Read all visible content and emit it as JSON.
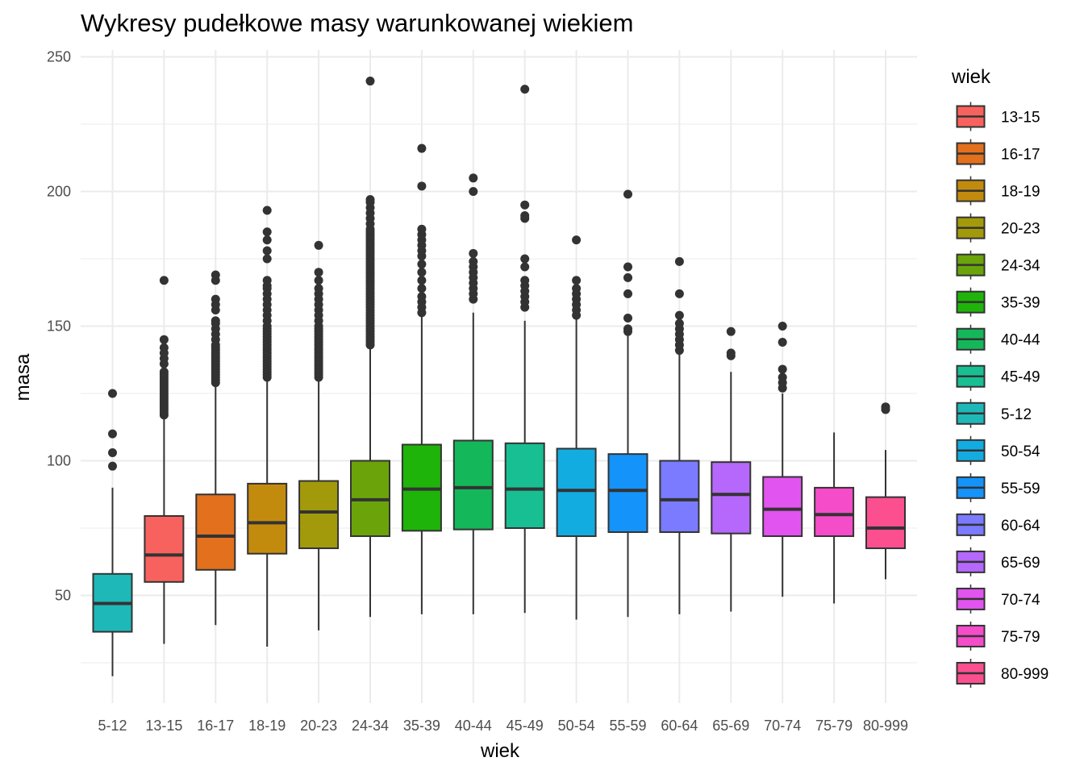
{
  "chart_data": {
    "type": "boxplot",
    "title": "Wykresy pudełkowe masy warunkowanej wiekiem",
    "xlabel": "wiek",
    "ylabel": "masa",
    "ylim": [
      10,
      252
    ],
    "yticks": [
      50,
      100,
      150,
      200,
      250
    ],
    "legend": {
      "title": "wiek",
      "position": "right"
    },
    "categories": [
      "5-12",
      "13-15",
      "16-17",
      "18-19",
      "20-23",
      "24-34",
      "35-39",
      "40-44",
      "45-49",
      "50-54",
      "55-59",
      "60-64",
      "65-69",
      "70-74",
      "75-79",
      "80-999"
    ],
    "colors": {
      "5-12": "#1FB8B8",
      "13-15": "#F8625E",
      "16-17": "#E2701C",
      "18-19": "#C38B0E",
      "20-23": "#A39A0B",
      "24-34": "#6AA40A",
      "35-39": "#1FB40A",
      "40-44": "#14B85A",
      "45-49": "#18BF93",
      "50-54": "#13ACE0",
      "55-59": "#1493FA",
      "60-64": "#7A7BFE",
      "65-69": "#B568FB",
      "70-74": "#E254EF",
      "75-79": "#F54CC9",
      "80-999": "#FB4F90"
    },
    "legend_order": [
      "13-15",
      "16-17",
      "18-19",
      "20-23",
      "24-34",
      "35-39",
      "40-44",
      "45-49",
      "5-12",
      "50-54",
      "55-59",
      "60-64",
      "65-69",
      "70-74",
      "75-79",
      "80-999"
    ],
    "boxes": [
      {
        "label": "5-12",
        "whisker_low": 20,
        "q1": 36.5,
        "median": 47,
        "q3": 58,
        "whisker_high": 90,
        "outliers": [
          98,
          103,
          110,
          125
        ]
      },
      {
        "label": "13-15",
        "whisker_low": 32,
        "q1": 55,
        "median": 65,
        "q3": 79.5,
        "whisker_high": 116,
        "outliers": [
          117,
          118,
          119,
          120,
          121,
          122,
          123,
          124,
          125,
          126,
          127,
          128,
          129,
          130,
          131,
          132,
          133,
          136,
          138,
          140,
          142,
          145,
          167
        ]
      },
      {
        "label": "16-17",
        "whisker_low": 39,
        "q1": 59.5,
        "median": 72,
        "q3": 87.5,
        "whisker_high": 128,
        "outliers": [
          129,
          130,
          131,
          132,
          133,
          134,
          135,
          136,
          137,
          138,
          139,
          140,
          141,
          142,
          143,
          145,
          147,
          149,
          151,
          152,
          156,
          158,
          160,
          167,
          169
        ]
      },
      {
        "label": "18-19",
        "whisker_low": 31,
        "q1": 65.5,
        "median": 77,
        "q3": 91.5,
        "whisker_high": 130,
        "outliers": [
          131,
          132,
          133,
          134,
          135,
          136,
          137,
          138,
          139,
          140,
          141,
          142,
          143,
          144,
          145,
          146,
          147,
          148,
          149,
          150,
          152,
          154,
          156,
          158,
          160,
          162,
          164,
          165,
          167,
          175,
          178,
          182,
          185,
          193
        ]
      },
      {
        "label": "20-23",
        "whisker_low": 37,
        "q1": 67.5,
        "median": 81,
        "q3": 92.5,
        "whisker_high": 130,
        "outliers": [
          131,
          132,
          133,
          134,
          135,
          136,
          137,
          138,
          139,
          140,
          141,
          142,
          143,
          144,
          145,
          146,
          147,
          148,
          149,
          150,
          152,
          154,
          156,
          158,
          160,
          162,
          164,
          167,
          170,
          180
        ]
      },
      {
        "label": "24-34",
        "whisker_low": 42,
        "q1": 72,
        "median": 85.5,
        "q3": 100,
        "whisker_high": 142,
        "outliers": [
          143,
          144,
          145,
          146,
          147,
          148,
          149,
          150,
          151,
          152,
          153,
          154,
          155,
          156,
          157,
          158,
          159,
          160,
          161,
          162,
          163,
          164,
          165,
          166,
          167,
          168,
          169,
          170,
          171,
          172,
          173,
          174,
          175,
          176,
          177,
          178,
          179,
          180,
          181,
          182,
          183,
          184,
          185,
          186,
          188,
          190,
          192,
          194,
          196,
          197,
          241
        ]
      },
      {
        "label": "35-39",
        "whisker_low": 43,
        "q1": 74,
        "median": 89.5,
        "q3": 106,
        "whisker_high": 154,
        "outliers": [
          155,
          157,
          159,
          161,
          164,
          167,
          170,
          173,
          176,
          178,
          180,
          182,
          184,
          186,
          202,
          216
        ]
      },
      {
        "label": "40-44",
        "whisker_low": 43,
        "q1": 74.5,
        "median": 90,
        "q3": 107.5,
        "whisker_high": 155,
        "outliers": [
          160,
          162,
          164,
          166,
          168,
          170,
          172,
          174,
          177,
          200,
          205
        ]
      },
      {
        "label": "45-49",
        "whisker_low": 43.5,
        "q1": 75,
        "median": 89.5,
        "q3": 106.5,
        "whisker_high": 152,
        "outliers": [
          157,
          159,
          161,
          163,
          165,
          167,
          172,
          175,
          190,
          191,
          195,
          238
        ]
      },
      {
        "label": "50-54",
        "whisker_low": 41,
        "q1": 72,
        "median": 89,
        "q3": 104.5,
        "whisker_high": 153,
        "outliers": [
          154,
          156,
          158,
          160,
          162,
          164,
          167,
          182
        ]
      },
      {
        "label": "55-59",
        "whisker_low": 42,
        "q1": 73.5,
        "median": 89,
        "q3": 102.5,
        "whisker_high": 147,
        "outliers": [
          148,
          149,
          153,
          162,
          168,
          172,
          199
        ]
      },
      {
        "label": "60-64",
        "whisker_low": 43,
        "q1": 73.5,
        "median": 85.5,
        "q3": 100,
        "whisker_high": 140,
        "outliers": [
          141,
          143,
          145,
          147,
          149,
          151,
          154,
          162,
          174
        ]
      },
      {
        "label": "65-69",
        "whisker_low": 44,
        "q1": 73,
        "median": 87.5,
        "q3": 99.5,
        "whisker_high": 133,
        "outliers": [
          139,
          140,
          148
        ]
      },
      {
        "label": "70-74",
        "whisker_low": 49.5,
        "q1": 72,
        "median": 82,
        "q3": 94,
        "whisker_high": 125,
        "outliers": [
          127,
          129,
          131,
          134,
          144,
          150
        ]
      },
      {
        "label": "75-79",
        "whisker_low": 47,
        "q1": 72,
        "median": 80,
        "q3": 90,
        "whisker_high": 110.5,
        "outliers": []
      },
      {
        "label": "80-999",
        "whisker_low": 56,
        "q1": 67.5,
        "median": 75,
        "q3": 86.5,
        "whisker_high": 104,
        "outliers": [
          119,
          120
        ]
      }
    ]
  }
}
